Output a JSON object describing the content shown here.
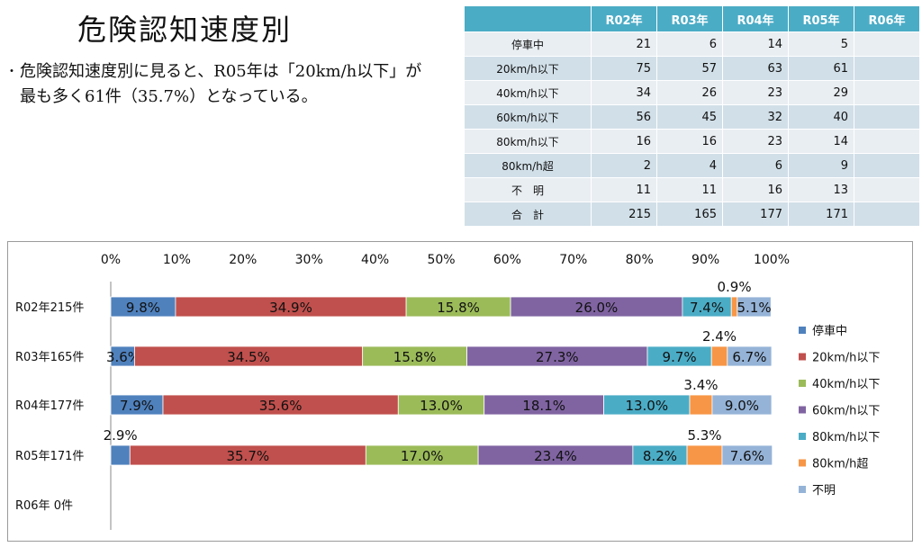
{
  "title": "危険認知速度別",
  "summary": {
    "bullet": "・",
    "text": "危険認知速度別に見ると、R05年は「20km/h以下」が最も多く61件（35.7%）となっている。"
  },
  "table": {
    "headers": [
      "",
      "R02年",
      "R03年",
      "R04年",
      "R05年",
      "R06年"
    ],
    "rows": [
      {
        "label": "停車中",
        "values": [
          "21",
          "6",
          "14",
          "5",
          ""
        ]
      },
      {
        "label": "20km/h以下",
        "values": [
          "75",
          "57",
          "63",
          "61",
          ""
        ]
      },
      {
        "label": "40km/h以下",
        "values": [
          "34",
          "26",
          "23",
          "29",
          ""
        ]
      },
      {
        "label": "60km/h以下",
        "values": [
          "56",
          "45",
          "32",
          "40",
          ""
        ]
      },
      {
        "label": "80km/h以下",
        "values": [
          "16",
          "16",
          "23",
          "14",
          ""
        ]
      },
      {
        "label": "80km/h超",
        "values": [
          "2",
          "4",
          "6",
          "9",
          ""
        ]
      },
      {
        "label": "不　明",
        "values": [
          "11",
          "11",
          "16",
          "13",
          ""
        ]
      },
      {
        "label": "合　計",
        "values": [
          "215",
          "165",
          "177",
          "171",
          ""
        ]
      }
    ]
  },
  "chart_data": {
    "type": "bar",
    "orientation": "horizontal",
    "stacked": "percent",
    "categories": [
      "R02年215件",
      "R03年165件",
      "R04年177件",
      "R05年171件",
      "R06年  0件"
    ],
    "xlim": [
      0,
      100
    ],
    "x_ticks": [
      "0%",
      "10%",
      "20%",
      "30%",
      "40%",
      "50%",
      "60%",
      "70%",
      "80%",
      "90%",
      "100%"
    ],
    "legend_position": "right",
    "series": [
      {
        "name": "停車中",
        "color": "#4f81bd",
        "values": [
          9.8,
          3.6,
          7.9,
          2.9,
          null
        ],
        "labels": [
          "9.8%",
          "3.6%",
          "7.9%",
          "2.9%",
          ""
        ]
      },
      {
        "name": "20km/h以下",
        "color": "#c0504d",
        "values": [
          34.9,
          34.5,
          35.6,
          35.7,
          null
        ],
        "labels": [
          "34.9%",
          "34.5%",
          "35.6%",
          "35.7%",
          ""
        ]
      },
      {
        "name": "40km/h以下",
        "color": "#9bbb59",
        "values": [
          15.8,
          15.8,
          13.0,
          17.0,
          null
        ],
        "labels": [
          "15.8%",
          "15.8%",
          "13.0%",
          "17.0%",
          ""
        ]
      },
      {
        "name": "60km/h以下",
        "color": "#8064a2",
        "values": [
          26.0,
          27.3,
          18.1,
          23.4,
          null
        ],
        "labels": [
          "26.0%",
          "27.3%",
          "18.1%",
          "23.4%",
          ""
        ]
      },
      {
        "name": "80km/h以下",
        "color": "#4bacc6",
        "values": [
          7.4,
          9.7,
          13.0,
          8.2,
          null
        ],
        "labels": [
          "7.4%",
          "9.7%",
          "13.0%",
          "8.2%",
          ""
        ]
      },
      {
        "name": "80km/h超",
        "color": "#f79646",
        "values": [
          0.9,
          2.4,
          3.4,
          5.3,
          null
        ],
        "labels": [
          "0.9%",
          "2.4%",
          "3.4%",
          "5.3%",
          ""
        ]
      },
      {
        "name": "不明",
        "color": "#95b3d7",
        "values": [
          5.1,
          6.7,
          9.0,
          7.6,
          null
        ],
        "labels": [
          "5.1%",
          "6.7%",
          "9.0%",
          "7.6%",
          ""
        ]
      }
    ]
  }
}
